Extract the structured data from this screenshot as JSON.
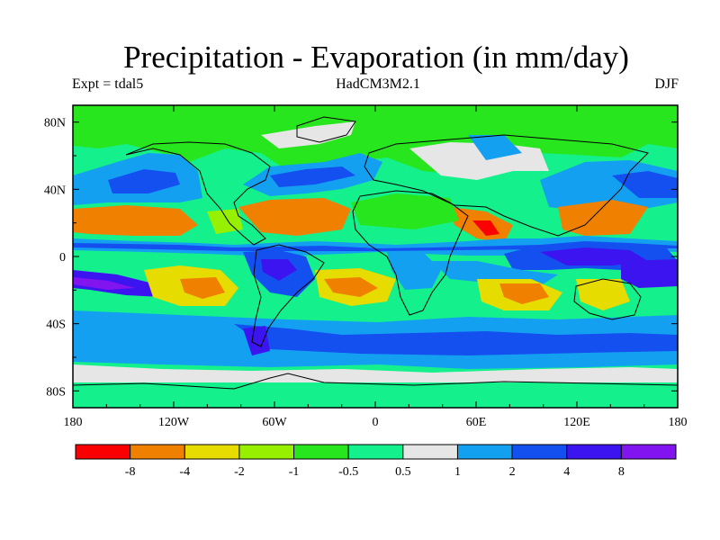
{
  "title": "Precipitation - Evaporation (in mm/day)",
  "subtitle_left": "Expt = tdal5",
  "subtitle_center": "HadCM3M2.1",
  "subtitle_right": "DJF",
  "map_data": {
    "type": "contour-fill-map",
    "variable": "Precipitation - Evaporation",
    "units": "mm/day",
    "season": "DJF",
    "lon_range": [
      -180,
      180
    ],
    "lat_range": [
      -90,
      90
    ],
    "lat_ticks": [
      {
        "value": 80,
        "label": "80N"
      },
      {
        "value": 40,
        "label": "40N"
      },
      {
        "value": 0,
        "label": "0"
      },
      {
        "value": -40,
        "label": "40S"
      },
      {
        "value": -80,
        "label": "80S"
      }
    ],
    "lon_ticks": [
      {
        "value": -180,
        "label": "180"
      },
      {
        "value": -120,
        "label": "120W"
      },
      {
        "value": -60,
        "label": "60W"
      },
      {
        "value": 0,
        "label": "0"
      },
      {
        "value": 60,
        "label": "60E"
      },
      {
        "value": 120,
        "label": "120E"
      },
      {
        "value": 180,
        "label": "180"
      }
    ]
  },
  "colorbar": {
    "colors": [
      "#fa0000",
      "#f08000",
      "#e6dc00",
      "#96f000",
      "#28e61e",
      "#14f08c",
      "#e6e6e6",
      "#14a0f0",
      "#1450f0",
      "#3c14f0",
      "#8214f0"
    ],
    "labels": [
      "-8",
      "-4",
      "-2",
      "-1",
      "-0.5",
      "0.5",
      "1",
      "2",
      "4",
      "8"
    ]
  }
}
